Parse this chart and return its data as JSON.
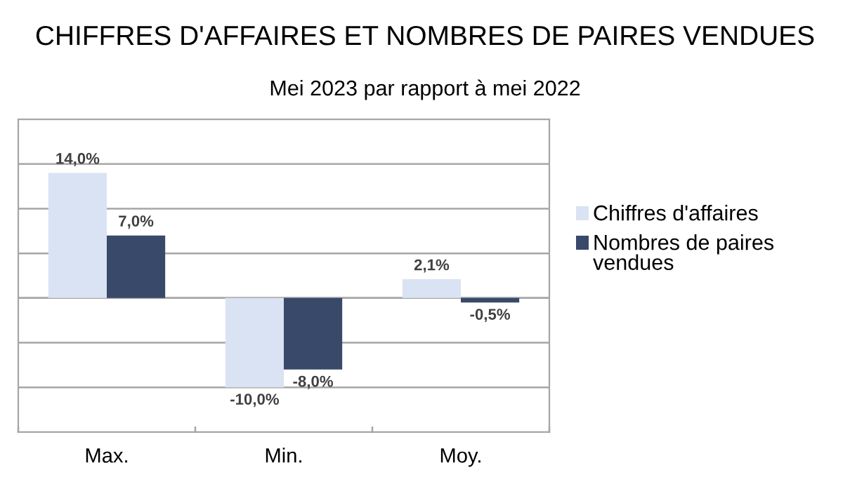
{
  "chart_data": {
    "type": "bar",
    "title": "CHIFFRES D'AFFAIRES ET NOMBRES DE PAIRES VENDUES",
    "subtitle": "Mei 2023 par rapport à mei 2022",
    "categories": [
      "Max.",
      "Min.",
      "Moy."
    ],
    "series": [
      {
        "name": "Chiffres d'affaires",
        "color": "#dae3f3",
        "values": [
          14.0,
          -10.0,
          2.1
        ],
        "value_labels": [
          "14,0%",
          "-10,0%",
          "2,1%"
        ]
      },
      {
        "name": "Nombres de paires vendues",
        "color": "#38496a",
        "values": [
          7.0,
          -8.0,
          -0.5
        ],
        "value_labels": [
          "7,0%",
          "-8,0%",
          "-0,5%"
        ]
      }
    ],
    "ylim": [
      -15,
      20
    ],
    "yticks": [
      {
        "value": -15,
        "label": null
      },
      {
        "value": -10,
        "label": null
      },
      {
        "value": -5,
        "label": null
      },
      {
        "value": 0,
        "label": null
      },
      {
        "value": 5,
        "label": null
      },
      {
        "value": 10,
        "label": null
      },
      {
        "value": 15,
        "label": null
      },
      {
        "value": 20,
        "label": null
      }
    ],
    "grid": "y",
    "legend": "right",
    "tick_labels": "x"
  }
}
